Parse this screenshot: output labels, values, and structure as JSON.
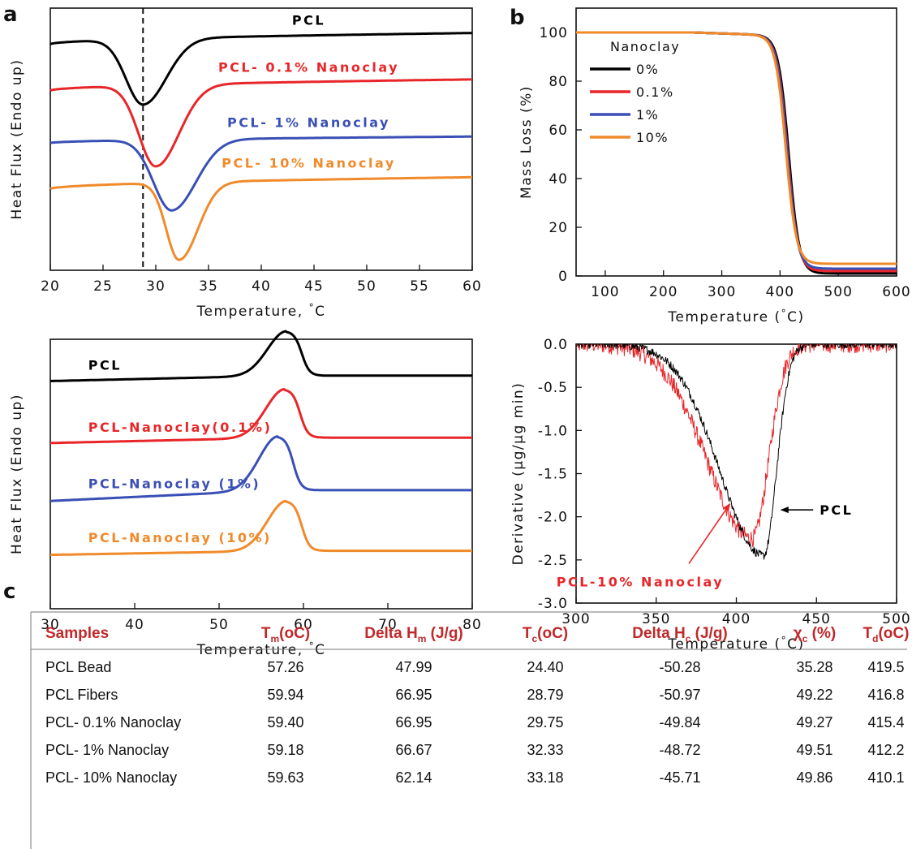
{
  "panel_letters": {
    "a": "a",
    "b": "b",
    "c": "c"
  },
  "chart_data": [
    {
      "id": "dsc-cooling",
      "type": "line",
      "xlabel": "Temperature, °C",
      "ylabel": "Heat Flux (Endo up)",
      "xlim": [
        20,
        60
      ],
      "xticks": [
        20,
        25,
        30,
        35,
        40,
        45,
        50,
        55,
        60
      ],
      "reference_line_x": 28.79,
      "series": [
        {
          "name": "PCL",
          "color": "#000000",
          "baseline_left": 0.862,
          "baseline_right": 0.905,
          "peak_x": 28.79,
          "peak_depth": 0.25,
          "sigma_left": 1.6,
          "sigma_right": 2.2,
          "label_x": 44.5,
          "label_level": 0.955
        },
        {
          "name": "PCL- 0.1% Nanoclay",
          "color": "#e8262a",
          "baseline_left": 0.685,
          "baseline_right": 0.728,
          "peak_x": 30.0,
          "peak_depth": 0.31,
          "sigma_left": 1.6,
          "sigma_right": 2.2,
          "label_x": 44.5,
          "label_level": 0.775
        },
        {
          "name": "PCL- 1% Nanoclay",
          "color": "#3a4fb5",
          "baseline_left": 0.485,
          "baseline_right": 0.51,
          "peak_x": 31.5,
          "peak_depth": 0.27,
          "sigma_left": 1.7,
          "sigma_right": 2.3,
          "label_x": 44.5,
          "label_level": 0.565
        },
        {
          "name": "PCL- 10% Nanoclay",
          "color": "#f08a2a",
          "baseline_left": 0.31,
          "baseline_right": 0.355,
          "peak_x": 32.2,
          "peak_depth": 0.295,
          "sigma_left": 1.2,
          "sigma_right": 1.8,
          "label_x": 44.5,
          "label_level": 0.41
        }
      ]
    },
    {
      "id": "tga",
      "type": "line",
      "xlabel": "Temperature (°C)",
      "ylabel": "Mass Loss (%)",
      "xlim": [
        50,
        600
      ],
      "ylim": [
        0,
        110
      ],
      "xticks": [
        100,
        200,
        300,
        400,
        500,
        600
      ],
      "yticks": [
        0,
        20,
        40,
        60,
        80,
        100
      ],
      "legend_title": "Nanoclay",
      "series": [
        {
          "name": "0%",
          "color": "#000000",
          "midpoint": 415,
          "width": 9,
          "residue": 1.0
        },
        {
          "name": "0.1%",
          "color": "#e8262a",
          "midpoint": 413,
          "width": 9,
          "residue": 2.0
        },
        {
          "name": "1%",
          "color": "#3a4fb5",
          "midpoint": 412,
          "width": 9,
          "residue": 3.0
        },
        {
          "name": "10%",
          "color": "#f08a2a",
          "midpoint": 410,
          "width": 9,
          "residue": 5.0
        }
      ]
    },
    {
      "id": "dsc-melting",
      "type": "line",
      "xlabel": "Temperature, °C",
      "ylabel": "Heat Flux (Endo up)",
      "xlim": [
        30,
        80
      ],
      "xticks": [
        30,
        40,
        50,
        60,
        70,
        80
      ],
      "series": [
        {
          "name": "PCL",
          "color": "#000000",
          "baseline_left": 0.845,
          "baseline_right": 0.865,
          "peak_x": 58.0,
          "peak_height": 0.165,
          "label_x": 34.5,
          "label_level": 0.905
        },
        {
          "name": "PCL-Nanoclay(0.1%)",
          "color": "#e8262a",
          "baseline_left": 0.615,
          "baseline_right": 0.635,
          "peak_x": 57.8,
          "peak_height": 0.18,
          "label_x": 34.5,
          "label_level": 0.675
        },
        {
          "name": "PCL-Nanoclay (1%)",
          "color": "#3a4fb5",
          "baseline_left": 0.4,
          "baseline_right": 0.44,
          "peak_x": 57.0,
          "peak_height": 0.2,
          "label_x": 34.5,
          "label_level": 0.465
        },
        {
          "name": "PCL-Nanoclay (10%)",
          "color": "#f08a2a",
          "baseline_left": 0.2,
          "baseline_right": 0.215,
          "peak_x": 58.0,
          "peak_height": 0.185,
          "label_x": 34.5,
          "label_level": 0.265
        }
      ]
    },
    {
      "id": "dtg",
      "type": "line",
      "xlabel": "Temperature (°C)",
      "ylabel": "Derivative (µg/µg min)",
      "xlim": [
        300,
        500
      ],
      "ylim": [
        -3.0,
        0.0
      ],
      "xticks": [
        300,
        350,
        400,
        450,
        500
      ],
      "yticks": [
        0.0,
        -0.5,
        -1.0,
        -1.5,
        -2.0,
        -2.5,
        -3.0
      ],
      "ytick_labels": [
        "0.0",
        "-0.5",
        "-1.0",
        "-1.5",
        "-2.0",
        "-2.5",
        "-3.0"
      ],
      "series": [
        {
          "name": "PCL",
          "color": "#000000",
          "peak_x": 417,
          "peak_y": -2.45,
          "left_sigma": 27,
          "right_sigma": 8,
          "noise": 0.05
        },
        {
          "name": "PCL-10% Nanoclay",
          "color": "#e8262a",
          "peak_x": 410,
          "peak_y": -2.25,
          "left_sigma": 28,
          "right_sigma": 10,
          "noise": 0.1
        }
      ],
      "annotations": [
        {
          "text": "PCL",
          "color": "#000000",
          "arrow_x": 428,
          "arrow_y": -1.92,
          "text_x": 452,
          "text_y": -1.92
        },
        {
          "text": "PCL-10% Nanoclay",
          "color": "#e8262a",
          "arrow_x": 396,
          "arrow_y": -1.85,
          "text_x": 340,
          "text_y": -2.75
        }
      ]
    },
    {
      "id": "thermal-properties",
      "type": "table",
      "columns": [
        {
          "base": "Samples",
          "sub": "",
          "tail": ""
        },
        {
          "base": "T",
          "sub": "m",
          "tail": "(oC)"
        },
        {
          "base": "Delta H",
          "sub": "m",
          "tail": " (J/g)"
        },
        {
          "base": "T",
          "sub": "c",
          "tail": "(oC)"
        },
        {
          "base": "Delta H",
          "sub": "c",
          "tail": " (J/g)"
        },
        {
          "base": "χ",
          "sub": "c",
          "tail": " (%)"
        },
        {
          "base": "T",
          "sub": "d",
          "tail": "(oC)"
        }
      ],
      "rows": [
        [
          "PCL Bead",
          "57.26",
          "47.99",
          "24.40",
          "-50.28",
          "35.28",
          "419.5"
        ],
        [
          "PCL Fibers",
          "59.94",
          "66.95",
          "28.79",
          "-50.97",
          "49.22",
          "416.8"
        ],
        [
          "PCL- 0.1% Nanoclay",
          "59.40",
          "66.95",
          "29.75",
          "-49.84",
          "49.27",
          "415.4"
        ],
        [
          "PCL- 1% Nanoclay",
          "59.18",
          "66.67",
          "32.33",
          "-48.72",
          "49.51",
          "412.2"
        ],
        [
          "PCL- 10% Nanoclay",
          "59.63",
          "62.14",
          "33.18",
          "-45.71",
          "49.86",
          "410.1"
        ]
      ]
    }
  ]
}
